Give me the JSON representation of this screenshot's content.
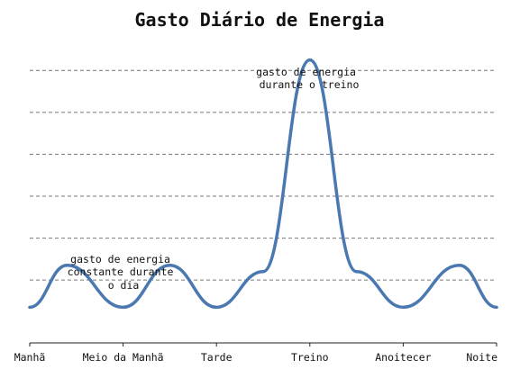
{
  "chart_data": {
    "type": "line",
    "title": "Gasto Diário de Energia",
    "xlabel": "",
    "ylabel": "",
    "categories": [
      "Manhã",
      "Meio da Manhã",
      "Tarde",
      "Treino",
      "Anoitecer",
      "Noite"
    ],
    "x": [
      0,
      0.4,
      1,
      1.5,
      2,
      2.5,
      3,
      3.5,
      4,
      4.6,
      5
    ],
    "series": [
      {
        "values": [
          0.35,
          1.35,
          0.35,
          1.35,
          0.35,
          1.2,
          6.25,
          1.2,
          0.35,
          1.35,
          0.35
        ]
      }
    ],
    "ylim": [
      -0.5,
      6.5
    ],
    "yticks": [
      1,
      2,
      3,
      4,
      5,
      6
    ],
    "grid": true,
    "annotations": [
      {
        "lines": [
          "gasto de energia",
          "durante o treino"
        ]
      },
      {
        "lines": [
          "gasto de energia",
          "constante durante",
          "o dia"
        ]
      }
    ]
  }
}
